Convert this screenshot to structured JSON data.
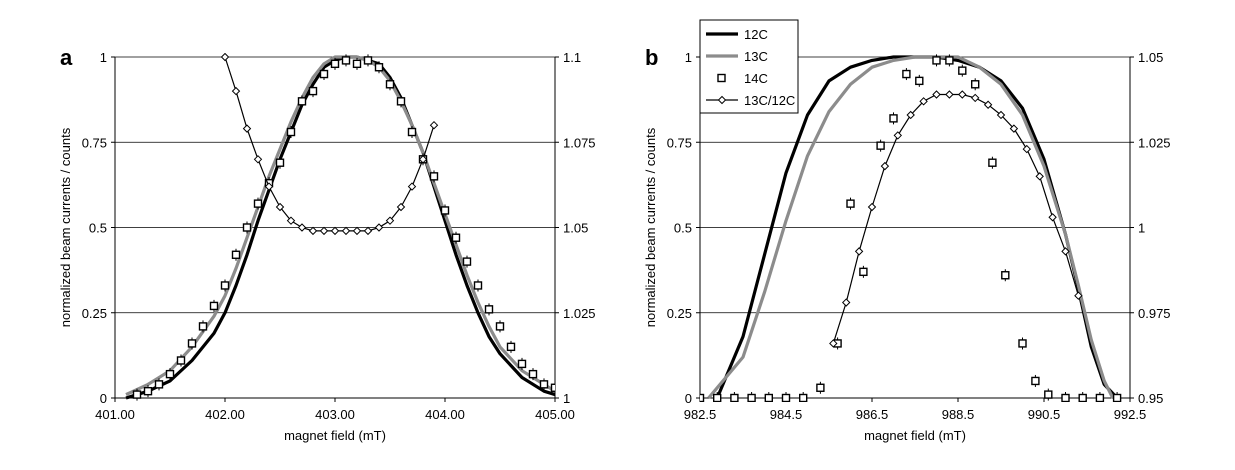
{
  "chart_data": [
    {
      "type": "line",
      "panel_label": "a",
      "xlabel": "magnet field (mT)",
      "ylabel": "normalized beam currents / counts",
      "xlim": [
        401.0,
        405.0
      ],
      "ylim": [
        0,
        1
      ],
      "y2lim": [
        1.0,
        1.1
      ],
      "x_ticks": [
        "401.00",
        "402.00",
        "403.00",
        "404.00",
        "405.00"
      ],
      "y_ticks": [
        "0",
        "0.25",
        "0.5",
        "0.75",
        "1"
      ],
      "y2_ticks": [
        "1",
        "1.025",
        "1.05",
        "1.075",
        "1.1"
      ],
      "grid": true,
      "series": [
        {
          "name": "12C",
          "style": "line",
          "color": "#000000",
          "x": [
            401.1,
            401.3,
            401.5,
            401.7,
            401.9,
            402.0,
            402.1,
            402.2,
            402.3,
            402.4,
            402.5,
            402.6,
            402.7,
            402.8,
            402.9,
            403.0,
            403.1,
            403.2,
            403.3,
            403.4,
            403.5,
            403.6,
            403.7,
            403.8,
            403.9,
            404.0,
            404.1,
            404.2,
            404.3,
            404.4,
            404.5,
            404.7,
            404.9,
            405.0
          ],
          "values": [
            0.0,
            0.02,
            0.05,
            0.11,
            0.19,
            0.25,
            0.33,
            0.42,
            0.52,
            0.61,
            0.7,
            0.78,
            0.86,
            0.92,
            0.97,
            0.99,
            1.0,
            1.0,
            0.99,
            0.98,
            0.94,
            0.88,
            0.8,
            0.72,
            0.62,
            0.52,
            0.42,
            0.33,
            0.25,
            0.18,
            0.13,
            0.06,
            0.02,
            0.01
          ]
        },
        {
          "name": "13C",
          "style": "line",
          "color": "#8c8c8c",
          "x": [
            401.1,
            401.3,
            401.5,
            401.7,
            401.9,
            402.0,
            402.1,
            402.2,
            402.3,
            402.4,
            402.5,
            402.6,
            402.7,
            402.8,
            402.9,
            403.0,
            403.1,
            403.2,
            403.3,
            403.4,
            403.5,
            403.6,
            403.7,
            403.8,
            403.9,
            404.0,
            404.1,
            404.2,
            404.3,
            404.4,
            404.5,
            404.7,
            404.9,
            405.0
          ],
          "values": [
            0.01,
            0.04,
            0.08,
            0.15,
            0.24,
            0.3,
            0.38,
            0.47,
            0.56,
            0.65,
            0.73,
            0.81,
            0.88,
            0.94,
            0.98,
            1.0,
            1.0,
            1.0,
            0.99,
            0.97,
            0.93,
            0.87,
            0.8,
            0.72,
            0.63,
            0.54,
            0.45,
            0.36,
            0.28,
            0.21,
            0.15,
            0.08,
            0.04,
            0.02
          ]
        },
        {
          "name": "14C",
          "style": "markers",
          "marker": "square",
          "color": "#000000",
          "x": [
            401.2,
            401.3,
            401.4,
            401.5,
            401.6,
            401.7,
            401.8,
            401.9,
            402.0,
            402.1,
            402.2,
            402.3,
            402.4,
            402.5,
            402.6,
            402.7,
            402.8,
            402.9,
            403.0,
            403.1,
            403.2,
            403.3,
            403.4,
            403.5,
            403.6,
            403.7,
            403.8,
            403.9,
            404.0,
            404.1,
            404.2,
            404.3,
            404.4,
            404.5,
            404.6,
            404.7,
            404.8,
            404.9,
            405.0
          ],
          "values": [
            0.01,
            0.02,
            0.04,
            0.07,
            0.11,
            0.16,
            0.21,
            0.27,
            0.33,
            0.42,
            0.5,
            0.57,
            0.63,
            0.69,
            0.78,
            0.87,
            0.9,
            0.95,
            0.98,
            0.99,
            0.98,
            0.99,
            0.97,
            0.92,
            0.87,
            0.78,
            0.7,
            0.65,
            0.55,
            0.47,
            0.4,
            0.33,
            0.26,
            0.21,
            0.15,
            0.1,
            0.07,
            0.04,
            0.03
          ]
        },
        {
          "name": "13C/12C",
          "style": "line-markers",
          "marker": "diamond",
          "axis": "right",
          "color": "#000000",
          "x": [
            402.0,
            402.1,
            402.2,
            402.3,
            402.4,
            402.5,
            402.6,
            402.7,
            402.8,
            402.9,
            403.0,
            403.1,
            403.2,
            403.3,
            403.4,
            403.5,
            403.6,
            403.7,
            403.8,
            403.9
          ],
          "values": [
            1.1,
            1.09,
            1.079,
            1.07,
            1.062,
            1.056,
            1.052,
            1.05,
            1.049,
            1.049,
            1.049,
            1.049,
            1.049,
            1.049,
            1.05,
            1.052,
            1.056,
            1.062,
            1.07,
            1.08
          ]
        }
      ]
    },
    {
      "type": "line",
      "panel_label": "b",
      "xlabel": "magnet field (mT)",
      "ylabel": "normalized beam currents / counts",
      "xlim": [
        982.5,
        992.5
      ],
      "ylim": [
        0,
        1
      ],
      "y2lim": [
        0.95,
        1.05
      ],
      "x_ticks": [
        "982.5",
        "984.5",
        "986.5",
        "988.5",
        "990.5",
        "992.5"
      ],
      "y_ticks": [
        "0",
        "0.25",
        "0.5",
        "0.75",
        "1"
      ],
      "y2_ticks": [
        "0.95",
        "0.975",
        "1",
        "1.025",
        "1.05"
      ],
      "grid": true,
      "legend": {
        "position": "top-left",
        "entries": [
          "12C",
          "13C",
          "14C",
          "13C/12C"
        ]
      },
      "series": [
        {
          "name": "12C",
          "style": "line",
          "color": "#000000",
          "x": [
            982.9,
            983.5,
            984.0,
            984.5,
            985.0,
            985.5,
            986.0,
            986.5,
            987.0,
            987.5,
            988.0,
            988.5,
            989.0,
            989.5,
            990.0,
            990.5,
            991.0,
            991.3,
            991.6,
            991.9,
            992.2
          ],
          "values": [
            0.0,
            0.18,
            0.42,
            0.66,
            0.83,
            0.93,
            0.97,
            0.99,
            1.0,
            1.0,
            1.0,
            0.99,
            0.97,
            0.93,
            0.85,
            0.7,
            0.48,
            0.32,
            0.15,
            0.04,
            0.0
          ]
        },
        {
          "name": "13C",
          "style": "line",
          "color": "#8c8c8c",
          "x": [
            982.7,
            983.5,
            984.0,
            984.5,
            985.0,
            985.5,
            986.0,
            986.5,
            987.0,
            987.5,
            988.0,
            988.5,
            989.0,
            989.5,
            990.0,
            990.5,
            991.0,
            991.3,
            991.6,
            991.9,
            992.1
          ],
          "values": [
            0.0,
            0.12,
            0.31,
            0.52,
            0.71,
            0.84,
            0.92,
            0.97,
            0.99,
            1.0,
            1.0,
            1.0,
            0.97,
            0.92,
            0.83,
            0.68,
            0.48,
            0.33,
            0.17,
            0.05,
            0.0
          ]
        },
        {
          "name": "14C",
          "style": "markers",
          "marker": "square",
          "color": "#000000",
          "x": [
            982.5,
            982.9,
            983.3,
            983.7,
            984.1,
            984.5,
            984.9,
            985.3,
            985.7,
            986.0,
            986.3,
            986.7,
            987.0,
            987.3,
            987.6,
            988.0,
            988.3,
            988.6,
            988.9,
            989.3,
            989.6,
            990.0,
            990.3,
            990.6,
            991.0,
            991.4,
            991.8,
            992.2
          ],
          "values": [
            0.0,
            0.0,
            0.0,
            0.0,
            0.0,
            0.0,
            0.0,
            0.03,
            0.16,
            0.57,
            0.37,
            0.74,
            0.82,
            0.95,
            0.93,
            0.99,
            0.99,
            0.96,
            0.92,
            0.69,
            0.36,
            0.16,
            0.05,
            0.01,
            0.0,
            0.0,
            0.0,
            0.0
          ]
        },
        {
          "name": "13C/12C",
          "style": "line-markers",
          "marker": "diamond",
          "axis": "right",
          "color": "#000000",
          "x": [
            985.6,
            985.9,
            986.2,
            986.5,
            986.8,
            987.1,
            987.4,
            987.7,
            988.0,
            988.3,
            988.6,
            988.9,
            989.2,
            989.5,
            989.8,
            990.1,
            990.4,
            990.7,
            991.0,
            991.3
          ],
          "values": [
            0.966,
            0.978,
            0.993,
            1.006,
            1.018,
            1.027,
            1.033,
            1.037,
            1.039,
            1.039,
            1.039,
            1.038,
            1.036,
            1.033,
            1.029,
            1.023,
            1.015,
            1.003,
            0.993,
            0.98
          ]
        }
      ]
    }
  ]
}
